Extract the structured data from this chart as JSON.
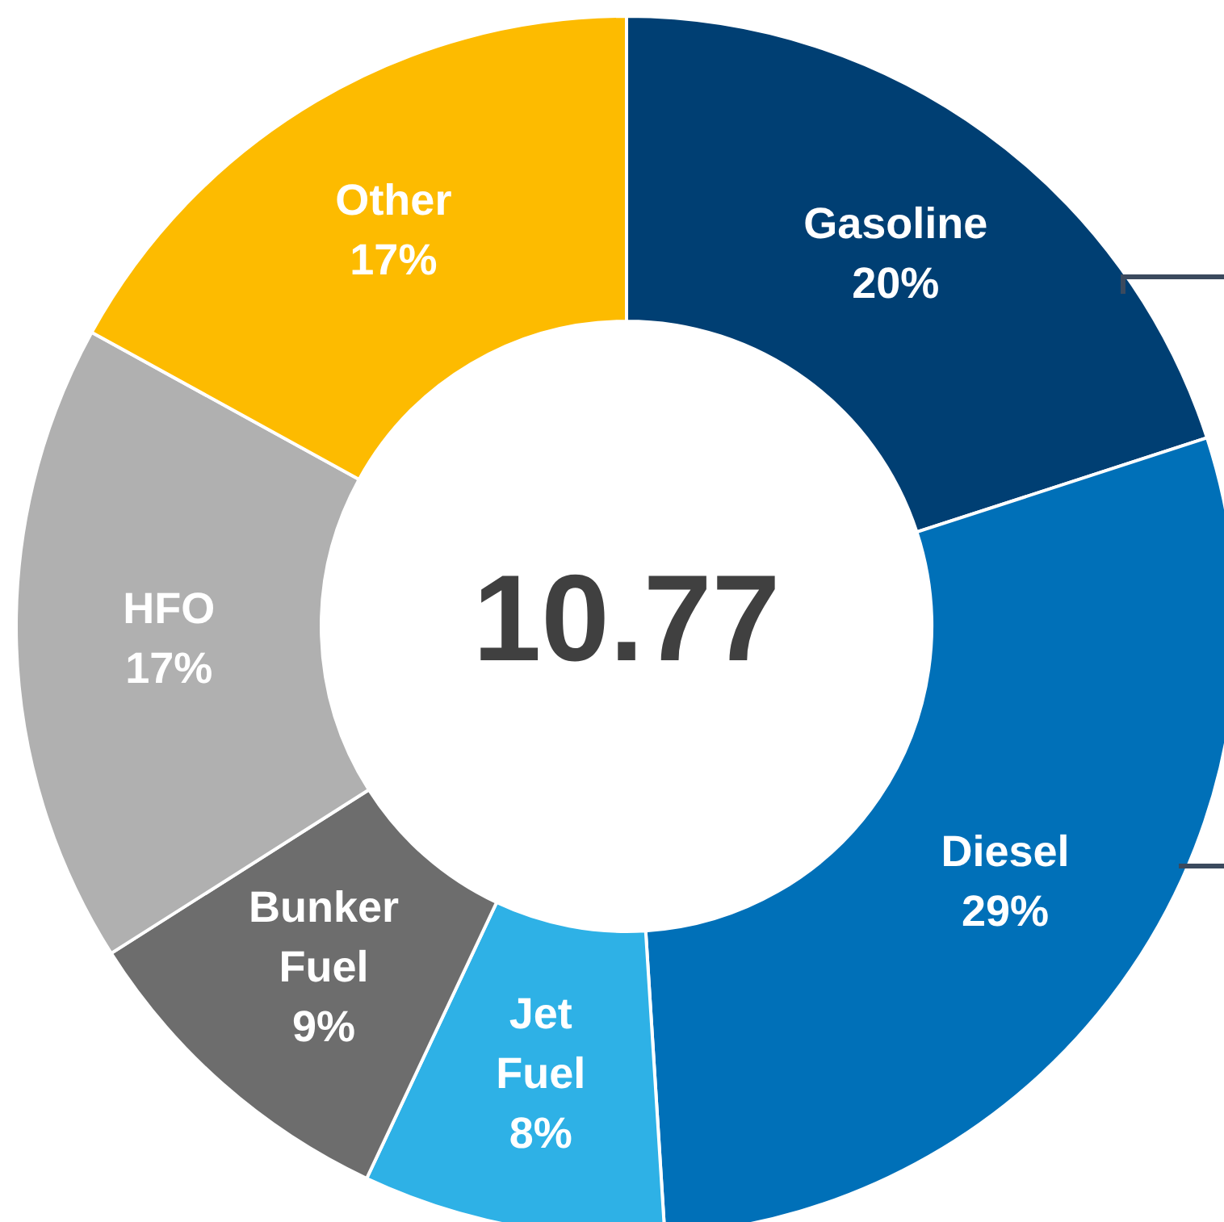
{
  "chart_data": {
    "type": "donut",
    "categories": [
      "Gasoline",
      "Diesel",
      "Jet Fuel",
      "Bunker Fuel",
      "HFO",
      "Other"
    ],
    "values": [
      20,
      29,
      8,
      9,
      17,
      17
    ],
    "colors": [
      "#003f73",
      "#0070b8",
      "#2eb1e6",
      "#6d6d6d",
      "#b0b0b0",
      "#fdbb00"
    ],
    "value_labels": [
      "20%",
      "29%",
      "8%",
      "9%",
      "17%",
      "17%"
    ],
    "annotations": [
      "10.77"
    ],
    "legend": false
  }
}
